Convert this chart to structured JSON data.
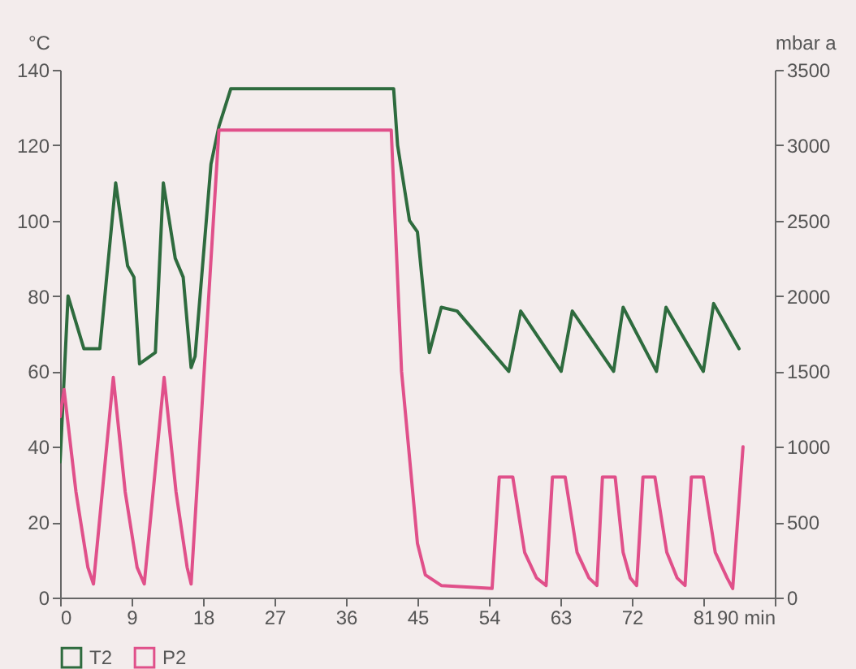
{
  "chart_data": {
    "type": "line",
    "ylabel": "°C",
    "y2label": "mbar a",
    "xlim": [
      0,
      90
    ],
    "xticks": [
      0,
      9,
      18,
      27,
      36,
      45,
      54,
      63,
      72,
      81,
      {
        "value": 90,
        "label": "90 min"
      }
    ],
    "ylim": [
      0,
      140
    ],
    "yticks": [
      0,
      20,
      40,
      60,
      80,
      100,
      120,
      140
    ],
    "y2lim": [
      0,
      3500
    ],
    "y2ticks": [
      0,
      500,
      1000,
      1500,
      2000,
      2500,
      3000,
      3500
    ],
    "grid": false,
    "legend": "bottom",
    "marker": "none",
    "line_style": "solid",
    "series": [
      {
        "name": "T2",
        "color": "#2e6b3e",
        "x": [
          0,
          1,
          3,
          5,
          7,
          8.5,
          9.3,
          10,
          12,
          13,
          14.5,
          15.5,
          16.5,
          17,
          19,
          20,
          21.5,
          42,
          42.5,
          44,
          45,
          46.5,
          48,
          50,
          56.5,
          58,
          63.1,
          64.5,
          69.7,
          70.9,
          75.1,
          76.3,
          81,
          82.3,
          85.5
        ],
        "values": [
          36,
          80,
          66,
          66,
          110,
          88,
          85,
          62,
          65,
          110,
          90,
          85,
          61,
          64,
          115,
          125,
          135,
          135,
          120,
          100,
          97,
          65,
          77,
          76,
          60,
          76,
          60,
          76,
          60,
          77,
          60,
          77,
          60,
          78,
          66
        ]
      },
      {
        "name": "P2",
        "color": "#e0508a",
        "axis": "y2",
        "x": [
          0,
          0.5,
          2,
          3.5,
          4.2,
          6.7,
          8.2,
          9.7,
          10.6,
          13.1,
          14.6,
          16,
          16.5,
          20,
          41.7,
          43,
          45,
          46,
          48,
          54.4,
          55.3,
          57,
          58.5,
          60,
          61.2,
          62,
          63.6,
          65.1,
          66.6,
          67.6,
          68.3,
          69.9,
          70.9,
          71.8,
          72.6,
          73.4,
          74.9,
          76.4,
          77.7,
          78.7,
          79.5,
          81,
          82.5,
          84,
          84.7,
          86
        ],
        "values": [
          1200,
          1380,
          700,
          200,
          90,
          1460,
          700,
          200,
          90,
          1460,
          700,
          200,
          90,
          3100,
          3100,
          1500,
          360,
          150,
          80,
          60,
          800,
          800,
          300,
          130,
          80,
          800,
          800,
          300,
          130,
          80,
          800,
          800,
          300,
          130,
          80,
          800,
          800,
          300,
          130,
          80,
          800,
          800,
          300,
          130,
          60,
          1000
        ]
      }
    ]
  }
}
